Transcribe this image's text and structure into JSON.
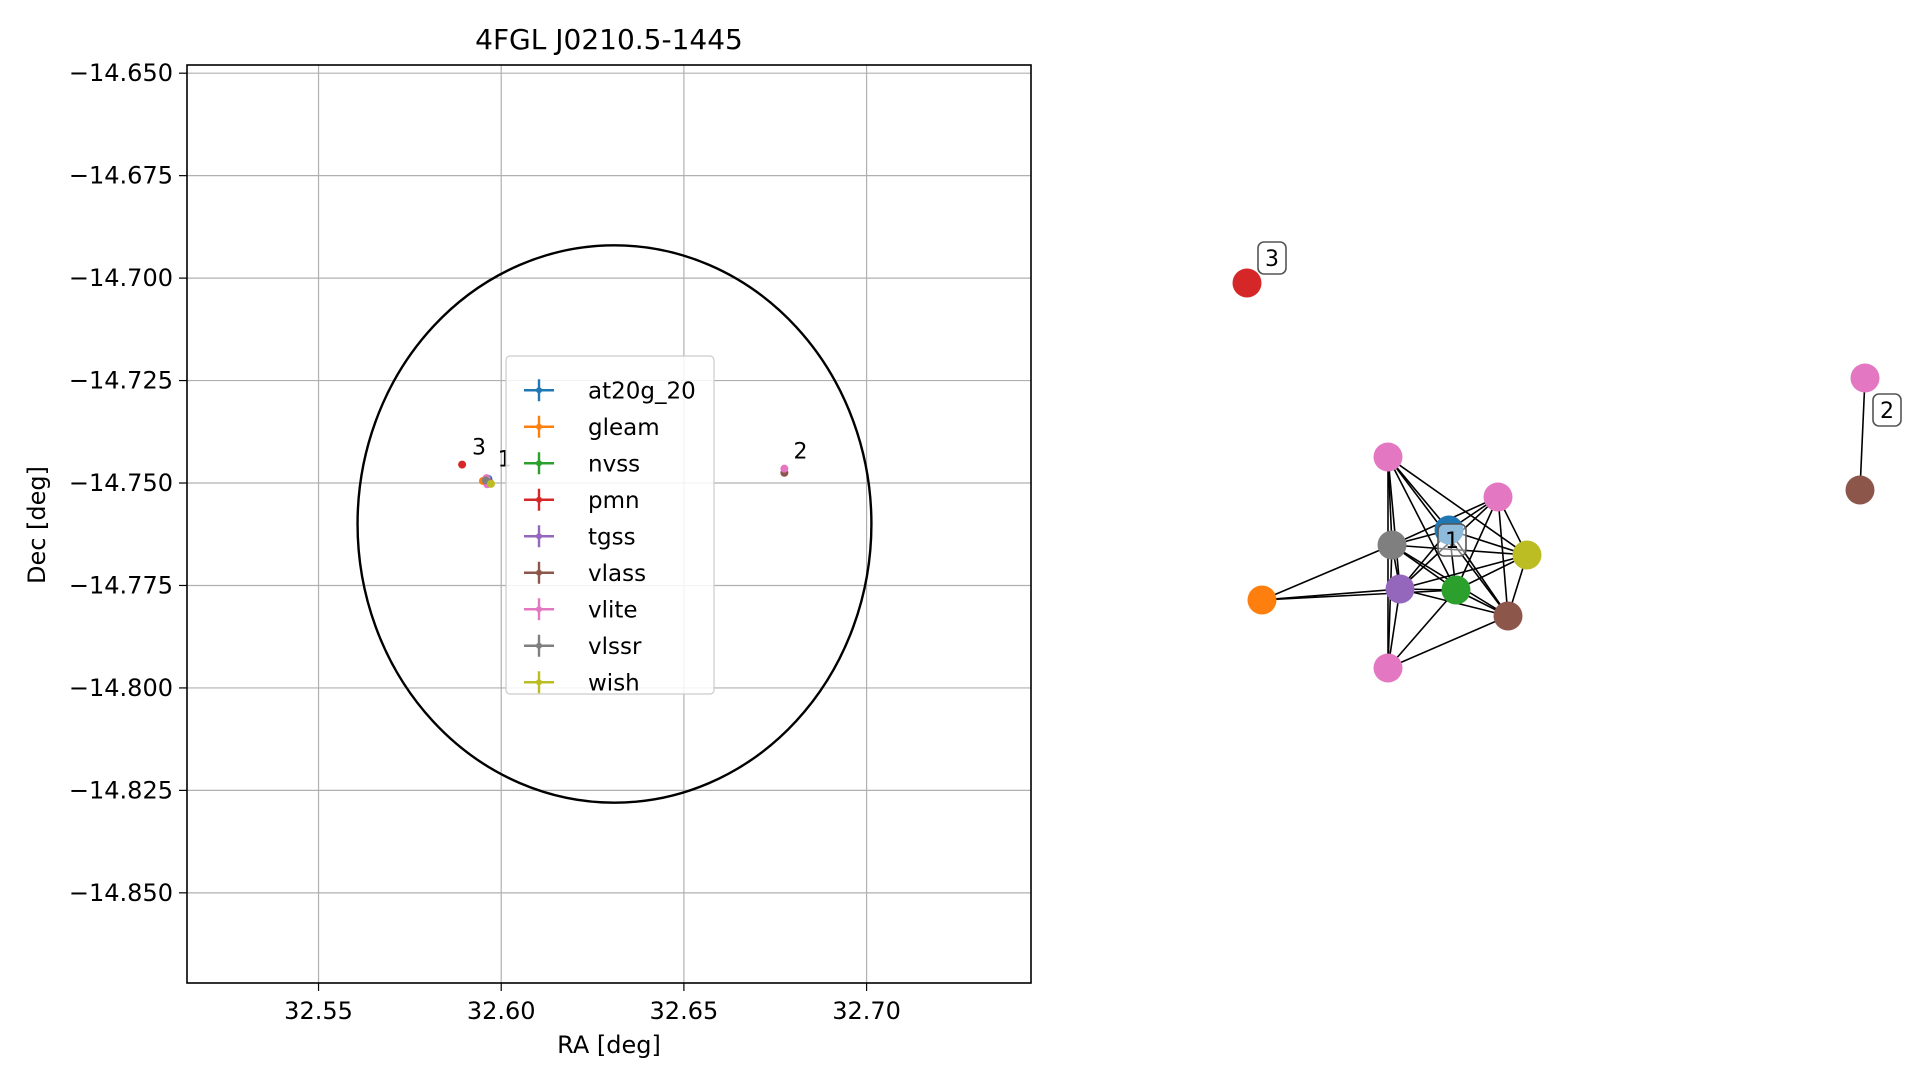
{
  "chart_data": [
    {
      "type": "scatter",
      "title": "4FGL J0210.5-1445",
      "xlabel": "RA [deg]",
      "ylabel": "Dec [deg]",
      "xlim": [
        32.514,
        32.745
      ],
      "ylim": [
        -14.872,
        -14.648
      ],
      "xticks": [
        32.55,
        32.6,
        32.65,
        32.7
      ],
      "xtick_labels": [
        "32.55",
        "32.60",
        "32.65",
        "32.70"
      ],
      "yticks": [
        -14.65,
        -14.675,
        -14.7,
        -14.725,
        -14.75,
        -14.775,
        -14.8,
        -14.825,
        -14.85
      ],
      "ytick_labels": [
        "−14.650",
        "−14.675",
        "−14.700",
        "−14.725",
        "−14.750",
        "−14.775",
        "−14.800",
        "−14.825",
        "−14.850"
      ],
      "grid": true,
      "legend_position": "center",
      "error_circle": {
        "center_ra": 32.631,
        "center_dec": -14.76,
        "radius_deg": 0.068
      },
      "series": [
        {
          "name": "at20g_20",
          "color": "#1f77b4",
          "points": [
            [
              32.5965,
              -14.749
            ]
          ]
        },
        {
          "name": "gleam",
          "color": "#ff7f0e",
          "points": [
            [
              32.595,
              -14.7495
            ]
          ]
        },
        {
          "name": "nvss",
          "color": "#2ca02c",
          "points": [
            [
              32.5968,
              -14.75
            ]
          ]
        },
        {
          "name": "pmn",
          "color": "#d62728",
          "points": [
            [
              32.5893,
              -14.7455
            ]
          ]
        },
        {
          "name": "tgss",
          "color": "#9467bd",
          "points": [
            [
              32.596,
              -14.7497
            ]
          ]
        },
        {
          "name": "vlass",
          "color": "#8c564b",
          "points": [
            [
              32.597,
              -14.75
            ],
            [
              32.6775,
              -14.7475
            ]
          ]
        },
        {
          "name": "vlite",
          "color": "#e377c2",
          "points": [
            [
              32.596,
              -14.7488
            ],
            [
              32.5962,
              -14.7503
            ],
            [
              32.6775,
              -14.7465
            ]
          ]
        },
        {
          "name": "vlssr",
          "color": "#7f7f7f",
          "points": [
            [
              32.5958,
              -14.7494
            ]
          ]
        },
        {
          "name": "wish",
          "color": "#bcbd22",
          "points": [
            [
              32.5972,
              -14.7502
            ]
          ]
        }
      ],
      "cluster_labels": [
        {
          "text": "3",
          "ra": 32.592,
          "dec": -14.743
        },
        {
          "text": "1",
          "ra": 32.599,
          "dec": -14.746
        },
        {
          "text": "2",
          "ra": 32.68,
          "dec": -14.744
        }
      ]
    },
    {
      "type": "network",
      "nodes": [
        {
          "id": "n_pmn",
          "series": "pmn",
          "color": "#d62728"
        },
        {
          "id": "n_vlite_top",
          "series": "vlite",
          "color": "#e377c2"
        },
        {
          "id": "n_vlite_r",
          "series": "vlite",
          "color": "#e377c2"
        },
        {
          "id": "n_vlssr",
          "series": "vlssr",
          "color": "#7f7f7f"
        },
        {
          "id": "n_at20g",
          "series": "at20g_20",
          "color": "#1f77b4"
        },
        {
          "id": "n_wish",
          "series": "wish",
          "color": "#bcbd22"
        },
        {
          "id": "n_gleam",
          "series": "gleam",
          "color": "#ff7f0e"
        },
        {
          "id": "n_tgss",
          "series": "tgss",
          "color": "#9467bd"
        },
        {
          "id": "n_nvss",
          "series": "nvss",
          "color": "#2ca02c"
        },
        {
          "id": "n_vlass",
          "series": "vlass",
          "color": "#8c564b"
        },
        {
          "id": "n_vlite_b",
          "series": "vlite",
          "color": "#e377c2"
        },
        {
          "id": "n_vlite2",
          "series": "vlite",
          "color": "#e377c2"
        },
        {
          "id": "n_vlass2",
          "series": "vlass",
          "color": "#8c564b"
        }
      ],
      "edges": [
        [
          "n_vlite_top",
          "n_vlssr"
        ],
        [
          "n_vlite_top",
          "n_tgss"
        ],
        [
          "n_vlite_top",
          "n_nvss"
        ],
        [
          "n_vlite_top",
          "n_at20g"
        ],
        [
          "n_vlite_top",
          "n_wish"
        ],
        [
          "n_vlite_top",
          "n_vlass"
        ],
        [
          "n_vlite_top",
          "n_vlite_b"
        ],
        [
          "n_vlite_r",
          "n_vlssr"
        ],
        [
          "n_vlite_r",
          "n_tgss"
        ],
        [
          "n_vlite_r",
          "n_nvss"
        ],
        [
          "n_vlite_r",
          "n_at20g"
        ],
        [
          "n_vlite_r",
          "n_wish"
        ],
        [
          "n_vlite_r",
          "n_vlass"
        ],
        [
          "n_vlssr",
          "n_at20g"
        ],
        [
          "n_vlssr",
          "n_wish"
        ],
        [
          "n_vlssr",
          "n_gleam"
        ],
        [
          "n_vlssr",
          "n_tgss"
        ],
        [
          "n_vlssr",
          "n_nvss"
        ],
        [
          "n_vlssr",
          "n_vlass"
        ],
        [
          "n_vlssr",
          "n_vlite_b"
        ],
        [
          "n_at20g",
          "n_wish"
        ],
        [
          "n_at20g",
          "n_tgss"
        ],
        [
          "n_at20g",
          "n_nvss"
        ],
        [
          "n_at20g",
          "n_vlass"
        ],
        [
          "n_wish",
          "n_tgss"
        ],
        [
          "n_wish",
          "n_nvss"
        ],
        [
          "n_wish",
          "n_vlass"
        ],
        [
          "n_gleam",
          "n_tgss"
        ],
        [
          "n_gleam",
          "n_nvss"
        ],
        [
          "n_tgss",
          "n_nvss"
        ],
        [
          "n_tgss",
          "n_vlass"
        ],
        [
          "n_tgss",
          "n_vlite_b"
        ],
        [
          "n_nvss",
          "n_vlass"
        ],
        [
          "n_nvss",
          "n_vlite_b"
        ],
        [
          "n_vlass",
          "n_vlite_b"
        ],
        [
          "n_vlite2",
          "n_vlass2"
        ]
      ],
      "labels": [
        {
          "text": "3",
          "node": "n_pmn"
        },
        {
          "text": "1",
          "node": "n_at20g"
        },
        {
          "text": "2",
          "node": "n_vlite2"
        }
      ]
    }
  ]
}
